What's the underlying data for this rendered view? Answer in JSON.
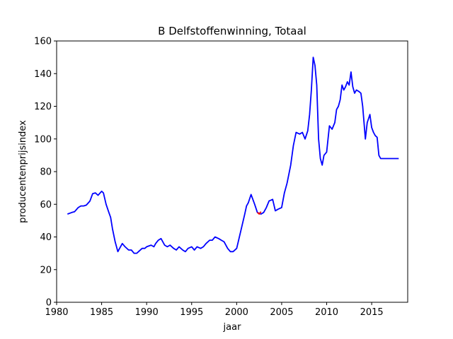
{
  "chart_data": {
    "type": "line",
    "title": "B Delfstoffenwinning, Totaal",
    "xlabel": "jaar",
    "ylabel": "producentenprijsindex",
    "xlim": [
      1980,
      2019
    ],
    "ylim": [
      0,
      160
    ],
    "xticks": [
      1980,
      1985,
      1990,
      1995,
      2000,
      2005,
      2010,
      2015
    ],
    "yticks": [
      0,
      20,
      40,
      60,
      80,
      100,
      120,
      140,
      160
    ],
    "grid": false,
    "legend": "none",
    "series": [
      {
        "color": "#0000ff",
        "x": [
          1981.2,
          1981.7,
          1982.0,
          1982.4,
          1982.7,
          1983.0,
          1983.3,
          1983.7,
          1984.0,
          1984.3,
          1984.6,
          1985.0,
          1985.2,
          1985.5,
          1985.8,
          1986.0,
          1986.2,
          1986.5,
          1986.8,
          1987.0,
          1987.3,
          1987.6,
          1988.0,
          1988.3,
          1988.6,
          1988.9,
          1989.1,
          1989.5,
          1989.8,
          1990.0,
          1990.5,
          1990.8,
          1991.0,
          1991.3,
          1991.6,
          1992.0,
          1992.3,
          1992.6,
          1993.0,
          1993.3,
          1993.6,
          1994.0,
          1994.3,
          1994.6,
          1995.0,
          1995.3,
          1995.6,
          1996.0,
          1996.3,
          1996.6,
          1997.0,
          1997.3,
          1997.6,
          1998.0,
          1998.3,
          1998.6,
          1999.0,
          1999.3,
          1999.6,
          2000.0,
          2000.3,
          2000.6,
          2000.9,
          2001.1,
          2001.3,
          2001.6,
          2002.0,
          2002.3,
          2002.7,
          2003.0,
          2003.3,
          2003.6,
          2004.0,
          2004.3,
          2004.6,
          2005.0,
          2005.3,
          2005.6,
          2006.0,
          2006.3,
          2006.6,
          2007.0,
          2007.3,
          2007.6,
          2007.9,
          2008.1,
          2008.3,
          2008.5,
          2008.7,
          2008.9,
          2009.1,
          2009.3,
          2009.5,
          2009.7,
          2010.0,
          2010.3,
          2010.6,
          2010.9,
          2011.1,
          2011.3,
          2011.5,
          2011.7,
          2011.9,
          2012.1,
          2012.3,
          2012.5,
          2012.7,
          2012.9,
          2013.1,
          2013.3,
          2013.6,
          2013.8,
          2014.0,
          2014.3,
          2014.5,
          2014.8,
          2015.0,
          2015.2,
          2015.4,
          2015.6,
          2015.8,
          2016.0,
          2016.2,
          2016.5,
          2017.0,
          2017.5,
          2018.0
        ],
        "y": [
          54,
          55,
          55.5,
          58,
          59,
          59,
          59.5,
          62,
          66.5,
          67,
          65.5,
          68,
          67,
          60,
          55,
          52,
          45,
          37,
          31,
          33,
          36,
          34,
          32,
          32,
          30,
          30,
          31,
          33,
          33,
          34,
          35,
          34,
          36,
          38,
          39,
          35,
          34,
          35,
          33,
          32,
          34,
          32,
          31,
          33,
          34,
          32,
          34,
          33,
          34,
          36,
          38,
          38,
          40,
          39,
          38,
          37,
          33,
          31,
          31,
          33,
          40,
          47,
          54,
          59,
          61,
          66,
          60,
          55,
          54,
          55,
          58,
          62,
          63,
          56,
          57,
          58,
          67,
          73,
          84,
          96,
          104,
          103,
          104,
          100,
          105,
          115,
          130,
          150,
          145,
          133,
          100,
          88,
          84,
          90,
          92,
          108,
          106,
          110,
          118,
          120,
          124,
          133,
          130,
          132,
          135,
          133,
          141,
          132,
          128,
          130,
          129,
          128,
          120,
          100,
          110,
          115,
          107,
          104,
          102,
          101,
          90,
          88,
          88,
          88,
          88,
          88,
          88
        ]
      },
      {
        "color": "#ff0000",
        "x": [
          2002.3,
          2002.5,
          2002.7
        ],
        "y": [
          55,
          54,
          55.5
        ]
      }
    ]
  }
}
